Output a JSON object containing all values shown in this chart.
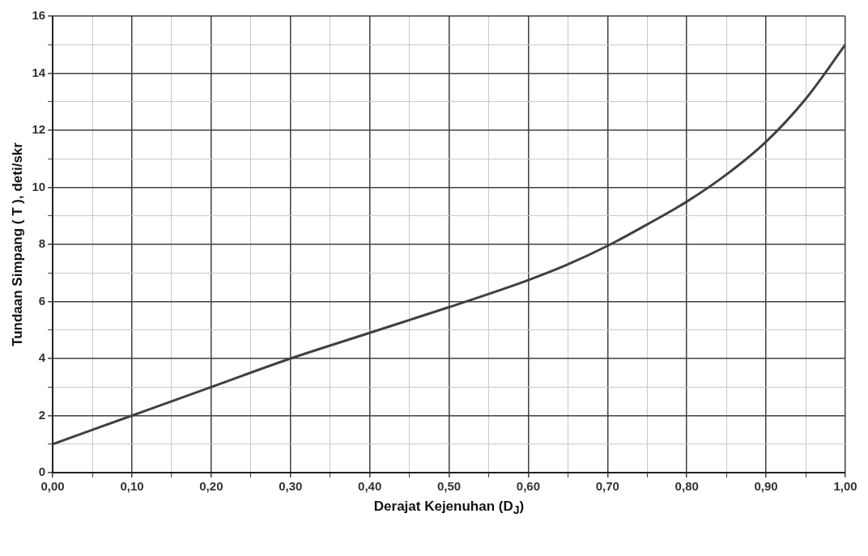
{
  "chart_data": {
    "type": "line",
    "xlabel": "Derajat Kejenuhan (D$_{J}$)",
    "ylabel": "Tundaan Simpang ( T ), deti/skr",
    "x": [
      0,
      0.1,
      0.2,
      0.3,
      0.4,
      0.5,
      0.6,
      0.65,
      0.7,
      0.75,
      0.8,
      0.85,
      0.9,
      0.95,
      1.0
    ],
    "series": [
      {
        "color": "#404040",
        "values": [
          1,
          2,
          3,
          4,
          4.9,
          5.8,
          6.75,
          7.3,
          7.95,
          8.7,
          9.5,
          10.45,
          11.6,
          13.1,
          15
        ]
      }
    ],
    "xlim": [
      0,
      1
    ],
    "ylim": [
      0,
      16
    ],
    "xticks": [
      {
        "value": 0,
        "label": "0,00"
      },
      {
        "value": 0.05,
        "label": null
      },
      {
        "value": 0.1,
        "label": "0,10"
      },
      {
        "value": 0.15,
        "label": null
      },
      {
        "value": 0.2,
        "label": "0,20"
      },
      {
        "value": 0.25,
        "label": null
      },
      {
        "value": 0.3,
        "label": "0,30"
      },
      {
        "value": 0.35,
        "label": null
      },
      {
        "value": 0.4,
        "label": "0,40"
      },
      {
        "value": 0.45,
        "label": null
      },
      {
        "value": 0.5,
        "label": "0,50"
      },
      {
        "value": 0.55,
        "label": null
      },
      {
        "value": 0.6,
        "label": "0,60"
      },
      {
        "value": 0.65,
        "label": null
      },
      {
        "value": 0.7,
        "label": "0,70"
      },
      {
        "value": 0.75,
        "label": null
      },
      {
        "value": 0.8,
        "label": "0,80"
      },
      {
        "value": 0.85,
        "label": null
      },
      {
        "value": 0.9,
        "label": "0,90"
      },
      {
        "value": 0.95,
        "label": null
      },
      {
        "value": 1,
        "label": "1,00"
      }
    ],
    "yticks": [
      0,
      {
        "value": 1,
        "label": null
      },
      2,
      {
        "value": 3,
        "label": null
      },
      4,
      {
        "value": 5,
        "label": null
      },
      6,
      {
        "value": 7,
        "label": null
      },
      8,
      {
        "value": 9,
        "label": null
      },
      10,
      {
        "value": 11,
        "label": null
      },
      12,
      {
        "value": 13,
        "label": null
      },
      14,
      {
        "value": 15,
        "label": null
      },
      16
    ],
    "grid": true,
    "legend": false,
    "marker": "none",
    "line_style": "solid"
  }
}
